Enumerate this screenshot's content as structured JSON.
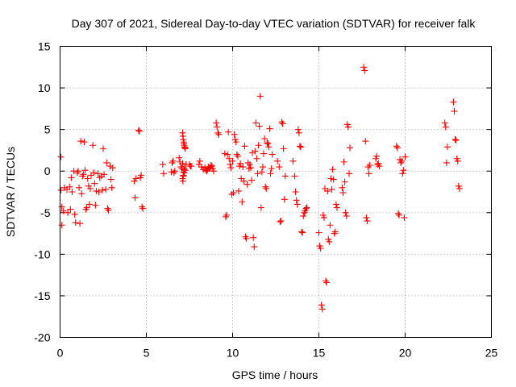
{
  "chart_data": {
    "type": "scatter",
    "title": "Day 307 of 2021, Sidereal Day-to-day VTEC variation (SDTVAR) for receiver falk",
    "xlabel": "GPS time / hours",
    "ylabel": "SDTVAR / TECUs",
    "xlim": [
      0,
      25
    ],
    "ylim": [
      -20,
      15
    ],
    "x_ticks": [
      0,
      5,
      10,
      15,
      20,
      25
    ],
    "y_ticks": [
      -20,
      -15,
      -10,
      -5,
      0,
      5,
      10,
      15
    ],
    "x_tick_labels": [
      "0",
      "5",
      "10",
      "15",
      "20",
      "25"
    ],
    "y_tick_labels": [
      "-20",
      "-15",
      "-10",
      "-5",
      "0",
      "5",
      "10",
      "15"
    ],
    "grid": true,
    "marker": "plus",
    "marker_color": "#ff0000",
    "series": [
      {
        "name": "SDTVAR",
        "points": [
          [
            0.05,
            1.7
          ],
          [
            0.05,
            -2.3
          ],
          [
            0.1,
            -4.3
          ],
          [
            0.1,
            -6.5
          ],
          [
            0.2,
            -4.8
          ],
          [
            0.25,
            -2.0
          ],
          [
            0.4,
            -2.2
          ],
          [
            0.45,
            -5.0
          ],
          [
            0.55,
            -1.9
          ],
          [
            0.6,
            -4.6
          ],
          [
            0.65,
            -0.8
          ],
          [
            0.7,
            -2.5
          ],
          [
            0.8,
            0.0
          ],
          [
            0.85,
            -5.2
          ],
          [
            0.9,
            -6.2
          ],
          [
            1.0,
            -0.2
          ],
          [
            1.05,
            0.0
          ],
          [
            1.1,
            -2.0
          ],
          [
            1.15,
            -6.3
          ],
          [
            1.2,
            3.6
          ],
          [
            1.25,
            -2.7
          ],
          [
            1.3,
            -0.6
          ],
          [
            1.35,
            -0.4
          ],
          [
            1.4,
            3.5
          ],
          [
            1.45,
            0.1
          ],
          [
            1.5,
            -4.6
          ],
          [
            1.55,
            -4.4
          ],
          [
            1.6,
            -0.9
          ],
          [
            1.65,
            -1.8
          ],
          [
            1.7,
            -4.0
          ],
          [
            1.75,
            -2.1
          ],
          [
            1.8,
            -0.5
          ],
          [
            1.9,
            3.1
          ],
          [
            1.95,
            -0.2
          ],
          [
            2.0,
            -1.5
          ],
          [
            2.05,
            -4.1
          ],
          [
            2.1,
            -2.4
          ],
          [
            2.2,
            -0.3
          ],
          [
            2.25,
            -2.5
          ],
          [
            2.3,
            -0.8
          ],
          [
            2.4,
            -0.6
          ],
          [
            2.45,
            -2.3
          ],
          [
            2.5,
            2.7
          ],
          [
            2.55,
            -0.4
          ],
          [
            2.65,
            -2.2
          ],
          [
            2.7,
            1.0
          ],
          [
            2.75,
            -4.5
          ],
          [
            2.8,
            -4.7
          ],
          [
            2.9,
            0.6
          ],
          [
            2.95,
            -1.0
          ],
          [
            3.0,
            -2.0
          ],
          [
            3.05,
            0.4
          ],
          [
            4.3,
            -1.2
          ],
          [
            4.35,
            -3.2
          ],
          [
            4.4,
            -0.9
          ],
          [
            4.55,
            4.9
          ],
          [
            4.6,
            4.8
          ],
          [
            4.65,
            -0.8
          ],
          [
            4.7,
            -0.5
          ],
          [
            4.75,
            -4.3
          ],
          [
            4.8,
            -4.5
          ],
          [
            5.95,
            0.8
          ],
          [
            6.0,
            -0.3
          ],
          [
            6.45,
            -0.1
          ],
          [
            6.5,
            1.0
          ],
          [
            6.55,
            1.2
          ],
          [
            6.6,
            -0.2
          ],
          [
            6.65,
            0.0
          ],
          [
            6.9,
            1.6
          ],
          [
            6.95,
            1.1
          ],
          [
            7.0,
            0.5
          ],
          [
            7.05,
            0.3
          ],
          [
            7.1,
            0.9
          ],
          [
            7.15,
            -0.6
          ],
          [
            7.2,
            -0.2
          ],
          [
            7.25,
            0.1
          ],
          [
            7.3,
            0.8
          ],
          [
            7.1,
            4.6
          ],
          [
            7.12,
            4.2
          ],
          [
            7.14,
            3.8
          ],
          [
            7.16,
            3.5
          ],
          [
            7.18,
            3.3
          ],
          [
            7.2,
            3.1
          ],
          [
            7.22,
            2.9
          ],
          [
            7.24,
            2.8
          ],
          [
            7.26,
            2.7
          ],
          [
            7.1,
            -0.9
          ],
          [
            7.12,
            -1.2
          ],
          [
            7.14,
            -0.5
          ],
          [
            7.16,
            -0.1
          ],
          [
            7.18,
            0.2
          ],
          [
            7.2,
            0.3
          ],
          [
            7.5,
            0.8
          ],
          [
            7.55,
            0.6
          ],
          [
            7.6,
            0.6
          ],
          [
            8.05,
            0.8
          ],
          [
            8.1,
            1.2
          ],
          [
            8.2,
            0.5
          ],
          [
            8.3,
            0.2
          ],
          [
            8.4,
            0.4
          ],
          [
            8.45,
            0.1
          ],
          [
            8.5,
            0.0
          ],
          [
            8.55,
            0.2
          ],
          [
            8.6,
            0.5
          ],
          [
            8.65,
            0.3
          ],
          [
            8.7,
            0.4
          ],
          [
            8.75,
            0.7
          ],
          [
            8.8,
            0.6
          ],
          [
            8.85,
            0.3
          ],
          [
            8.9,
            0.0
          ],
          [
            9.05,
            5.8
          ],
          [
            9.1,
            5.3
          ],
          [
            9.15,
            4.6
          ],
          [
            9.2,
            4.4
          ],
          [
            9.55,
            2.1
          ],
          [
            9.6,
            -5.5
          ],
          [
            9.65,
            -5.3
          ],
          [
            9.7,
            2.0
          ],
          [
            9.75,
            4.7
          ],
          [
            9.8,
            1.5
          ],
          [
            9.85,
            0.8
          ],
          [
            9.9,
            0.4
          ],
          [
            9.95,
            -2.8
          ],
          [
            10.0,
            1.2
          ],
          [
            10.05,
            -2.6
          ],
          [
            10.1,
            4.4
          ],
          [
            10.15,
            3.8
          ],
          [
            10.2,
            3.5
          ],
          [
            10.25,
            2.0
          ],
          [
            10.3,
            1.8
          ],
          [
            10.35,
            -2.4
          ],
          [
            10.4,
            0.6
          ],
          [
            10.45,
            0.9
          ],
          [
            10.5,
            -0.9
          ],
          [
            10.55,
            -3.7
          ],
          [
            10.6,
            0.5
          ],
          [
            10.65,
            -1.2
          ],
          [
            10.7,
            3.0
          ],
          [
            10.75,
            -7.9
          ],
          [
            10.8,
            -8.1
          ],
          [
            10.85,
            -1.6
          ],
          [
            10.9,
            1.0
          ],
          [
            10.95,
            0.3
          ],
          [
            11.0,
            0.8
          ],
          [
            11.05,
            0.4
          ],
          [
            11.1,
            -1.1
          ],
          [
            11.15,
            2.2
          ],
          [
            11.2,
            -8.0
          ],
          [
            11.25,
            -9.1
          ],
          [
            11.3,
            2.4
          ],
          [
            11.35,
            5.8
          ],
          [
            11.4,
            1.5
          ],
          [
            11.45,
            -0.3
          ],
          [
            11.5,
            3.1
          ],
          [
            11.55,
            5.4
          ],
          [
            11.6,
            9.0
          ],
          [
            11.65,
            -4.4
          ],
          [
            11.7,
            -0.1
          ],
          [
            11.75,
            0.5
          ],
          [
            11.8,
            2.1
          ],
          [
            11.85,
            3.9
          ],
          [
            11.9,
            -1.9
          ],
          [
            11.95,
            -2.1
          ],
          [
            12.0,
            3.4
          ],
          [
            12.05,
            3.3
          ],
          [
            12.1,
            2.9
          ],
          [
            12.15,
            5.1
          ],
          [
            12.2,
            -0.3
          ],
          [
            12.25,
            0.3
          ],
          [
            12.3,
            2.0
          ],
          [
            12.6,
            1.2
          ],
          [
            12.7,
            0.5
          ],
          [
            12.75,
            -6.1
          ],
          [
            12.8,
            -6.0
          ],
          [
            12.85,
            5.9
          ],
          [
            12.9,
            5.7
          ],
          [
            12.95,
            2.7
          ],
          [
            13.0,
            -3.4
          ],
          [
            13.05,
            -0.6
          ],
          [
            13.5,
            1.2
          ],
          [
            13.6,
            -0.6
          ],
          [
            13.65,
            -2.5
          ],
          [
            13.7,
            -3.5
          ],
          [
            13.75,
            -4.0
          ],
          [
            13.8,
            5.0
          ],
          [
            13.85,
            4.6
          ],
          [
            13.9,
            3.0
          ],
          [
            13.95,
            2.9
          ],
          [
            14.0,
            -7.3
          ],
          [
            14.05,
            -7.4
          ],
          [
            14.1,
            -5.4
          ],
          [
            14.15,
            -5.0
          ],
          [
            14.2,
            -4.8
          ],
          [
            14.25,
            -4.5
          ],
          [
            14.3,
            -4.4
          ],
          [
            15.0,
            -7.4
          ],
          [
            15.05,
            -9.0
          ],
          [
            15.1,
            -9.3
          ],
          [
            15.15,
            -16.1
          ],
          [
            15.2,
            -16.6
          ],
          [
            15.25,
            -5.3
          ],
          [
            15.3,
            -5.6
          ],
          [
            15.35,
            -2.1
          ],
          [
            15.4,
            -13.2
          ],
          [
            15.45,
            -13.4
          ],
          [
            15.5,
            -2.4
          ],
          [
            15.55,
            -8.2
          ],
          [
            15.6,
            -8.5
          ],
          [
            15.65,
            -6.5
          ],
          [
            15.7,
            -0.9
          ],
          [
            15.75,
            -2.2
          ],
          [
            15.8,
            0.2
          ],
          [
            15.85,
            -1.0
          ],
          [
            15.9,
            -7.5
          ],
          [
            15.95,
            -7.3
          ],
          [
            16.0,
            -4.0
          ],
          [
            16.05,
            -4.4
          ],
          [
            16.35,
            -2.0
          ],
          [
            16.4,
            -2.6
          ],
          [
            16.45,
            1.1
          ],
          [
            16.5,
            -1.3
          ],
          [
            16.55,
            -5.0
          ],
          [
            16.6,
            -5.4
          ],
          [
            16.65,
            5.6
          ],
          [
            16.7,
            5.3
          ],
          [
            16.75,
            -0.3
          ],
          [
            16.8,
            2.8
          ],
          [
            17.6,
            12.5
          ],
          [
            17.65,
            12.1
          ],
          [
            17.7,
            3.6
          ],
          [
            17.75,
            -5.6
          ],
          [
            17.8,
            -6.0
          ],
          [
            17.85,
            0.5
          ],
          [
            17.9,
            -0.3
          ],
          [
            17.95,
            0.7
          ],
          [
            18.3,
            1.5
          ],
          [
            18.35,
            1.8
          ],
          [
            18.4,
            0.8
          ],
          [
            18.45,
            0.9
          ],
          [
            18.5,
            0.6
          ],
          [
            19.5,
            3.0
          ],
          [
            19.55,
            2.8
          ],
          [
            19.6,
            -5.1
          ],
          [
            19.65,
            -5.3
          ],
          [
            19.7,
            1.4
          ],
          [
            19.75,
            1.0
          ],
          [
            19.8,
            1.2
          ],
          [
            19.85,
            -0.3
          ],
          [
            19.9,
            0.1
          ],
          [
            19.95,
            -5.6
          ],
          [
            20.0,
            1.7
          ],
          [
            22.3,
            5.8
          ],
          [
            22.35,
            5.3
          ],
          [
            22.4,
            1.0
          ],
          [
            22.45,
            2.9
          ],
          [
            22.8,
            8.3
          ],
          [
            22.85,
            7.2
          ],
          [
            22.9,
            3.8
          ],
          [
            22.95,
            3.7
          ],
          [
            23.0,
            1.5
          ],
          [
            23.05,
            1.2
          ],
          [
            23.1,
            -1.8
          ],
          [
            23.15,
            -2.1
          ]
        ]
      }
    ]
  }
}
